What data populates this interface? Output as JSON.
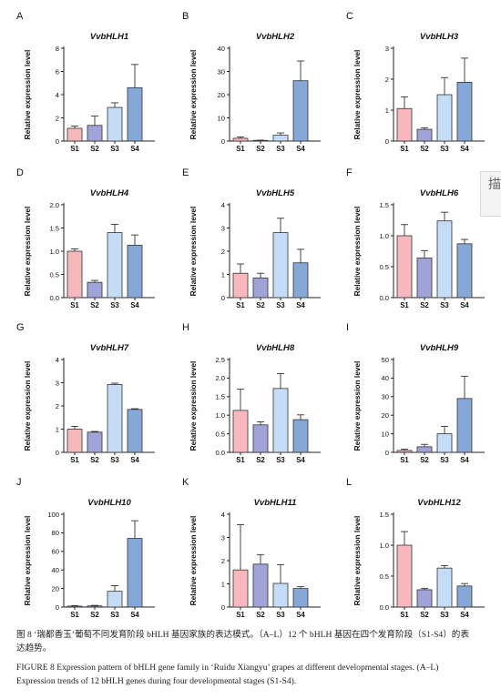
{
  "palette": [
    "#f7b8bd",
    "#a0a3d8",
    "#c4dcf6",
    "#85a8d6"
  ],
  "chart_data": [
    {
      "type": "bar",
      "panel": "A",
      "title": "VvbHLH1",
      "ylabel": "Relative expression level",
      "categories": [
        "S1",
        "S2",
        "S3",
        "S4"
      ],
      "values": [
        1.1,
        1.35,
        2.9,
        4.6
      ],
      "errors": [
        0.2,
        0.8,
        0.4,
        2.0
      ],
      "ylim": [
        0,
        8
      ],
      "yticks": [
        "0",
        "2",
        "4",
        "6",
        "8"
      ]
    },
    {
      "type": "bar",
      "panel": "B",
      "title": "VvbHLH2",
      "ylabel": "Relative expression level",
      "categories": [
        "S1",
        "S2",
        "S3",
        "S4"
      ],
      "values": [
        1.2,
        0.3,
        2.5,
        26.0
      ],
      "errors": [
        0.6,
        0.1,
        1.0,
        8.5
      ],
      "ylim": [
        0,
        40
      ],
      "yticks": [
        "0",
        "10",
        "20",
        "30",
        "40"
      ]
    },
    {
      "type": "bar",
      "panel": "C",
      "title": "VvbHLH3",
      "ylabel": "Relative expression level",
      "categories": [
        "S1",
        "S2",
        "S3",
        "S4"
      ],
      "values": [
        1.05,
        0.38,
        1.5,
        1.9
      ],
      "errors": [
        0.38,
        0.05,
        0.55,
        0.78
      ],
      "ylim": [
        0,
        3
      ],
      "yticks": [
        "0",
        "1",
        "2",
        "3"
      ]
    },
    {
      "type": "bar",
      "panel": "D",
      "title": "VvbHLH4",
      "ylabel": "Relative expression level",
      "categories": [
        "S1",
        "S2",
        "S3",
        "S4"
      ],
      "values": [
        1.0,
        0.33,
        1.4,
        1.13
      ],
      "errors": [
        0.05,
        0.04,
        0.18,
        0.22
      ],
      "ylim": [
        0,
        2.0
      ],
      "yticks": [
        "0.0",
        "0.5",
        "1.0",
        "1.5",
        "2.0"
      ]
    },
    {
      "type": "bar",
      "panel": "E",
      "title": "VvbHLH5",
      "ylabel": "Relative expression level",
      "categories": [
        "S1",
        "S2",
        "S3",
        "S4"
      ],
      "values": [
        1.05,
        0.85,
        2.8,
        1.5
      ],
      "errors": [
        0.4,
        0.2,
        0.62,
        0.58
      ],
      "ylim": [
        0,
        4
      ],
      "yticks": [
        "0",
        "1",
        "2",
        "3",
        "4"
      ]
    },
    {
      "type": "bar",
      "panel": "F",
      "title": "VvbHLH6",
      "ylabel": "Relative expression level",
      "categories": [
        "S1",
        "S2",
        "S3",
        "S4"
      ],
      "values": [
        1.0,
        0.64,
        1.24,
        0.87
      ],
      "errors": [
        0.18,
        0.12,
        0.14,
        0.07
      ],
      "ylim": [
        0,
        1.5
      ],
      "yticks": [
        "0.0",
        "0.5",
        "1.0",
        "1.5"
      ]
    },
    {
      "type": "bar",
      "panel": "G",
      "title": "VvbHLH7",
      "ylabel": "Relative expression level",
      "categories": [
        "S1",
        "S2",
        "S3",
        "S4"
      ],
      "values": [
        1.0,
        0.87,
        2.92,
        1.85
      ],
      "errors": [
        0.12,
        0.03,
        0.06,
        0.03
      ],
      "ylim": [
        0,
        4
      ],
      "yticks": [
        "0",
        "1",
        "2",
        "3",
        "4"
      ]
    },
    {
      "type": "bar",
      "panel": "H",
      "title": "VvbHLH8",
      "ylabel": "Relative expression level",
      "categories": [
        "S1",
        "S2",
        "S3",
        "S4"
      ],
      "values": [
        1.13,
        0.74,
        1.72,
        0.88
      ],
      "errors": [
        0.57,
        0.08,
        0.4,
        0.13
      ],
      "ylim": [
        0,
        2.5
      ],
      "yticks": [
        "0.0",
        "0.5",
        "1.0",
        "1.5",
        "2.0",
        "2.5"
      ]
    },
    {
      "type": "bar",
      "panel": "I",
      "title": "VvbHLH9",
      "ylabel": "Relative expression level",
      "categories": [
        "S1",
        "S2",
        "S3",
        "S4"
      ],
      "values": [
        1.0,
        3.0,
        10.0,
        29.0
      ],
      "errors": [
        0.7,
        1.3,
        4.0,
        12.0
      ],
      "ylim": [
        0,
        50
      ],
      "yticks": [
        "0",
        "10",
        "20",
        "30",
        "40",
        "50"
      ]
    },
    {
      "type": "bar",
      "panel": "J",
      "title": "VvbHLH10",
      "ylabel": "Relative expression level",
      "categories": [
        "S1",
        "S2",
        "S3",
        "S4"
      ],
      "values": [
        1.0,
        1.2,
        17.0,
        74.0
      ],
      "errors": [
        0.6,
        0.6,
        6.0,
        19.0
      ],
      "ylim": [
        0,
        100
      ],
      "yticks": [
        "0",
        "20",
        "40",
        "60",
        "80",
        "100"
      ]
    },
    {
      "type": "bar",
      "panel": "K",
      "title": "VvbHLH11",
      "ylabel": "Relative expression level",
      "categories": [
        "S1",
        "S2",
        "S3",
        "S4"
      ],
      "values": [
        1.6,
        1.85,
        1.02,
        0.8
      ],
      "errors": [
        1.95,
        0.4,
        0.8,
        0.08
      ],
      "ylim": [
        0,
        4
      ],
      "yticks": [
        "0",
        "1",
        "2",
        "3",
        "4"
      ]
    },
    {
      "type": "bar",
      "panel": "L",
      "title": "VvbHLH12",
      "ylabel": "Relative expression level",
      "categories": [
        "S1",
        "S2",
        "S3",
        "S4"
      ],
      "values": [
        1.0,
        0.28,
        0.63,
        0.34
      ],
      "errors": [
        0.22,
        0.02,
        0.04,
        0.04
      ],
      "ylim": [
        0,
        1.5
      ],
      "yticks": [
        "0.0",
        "0.5",
        "1.0",
        "1.5"
      ]
    }
  ],
  "caption": {
    "cn": "图 8 ‘瑞都香玉’葡萄不同发育阶段 bHLH 基因家族的表达模式。（A–L）12 个 bHLH 基因在四个发育阶段（S1-S4）的表达趋势。",
    "en": "FIGURE 8 Expression pattern of bHLH gene family in ‘Ruidu Xiangyu’ grapes at different developmental stages. (A–L) Expression trends of 12 bHLH genes during four developmental stages (S1-S4)."
  },
  "side_tab": {
    "text": "描 (可"
  }
}
